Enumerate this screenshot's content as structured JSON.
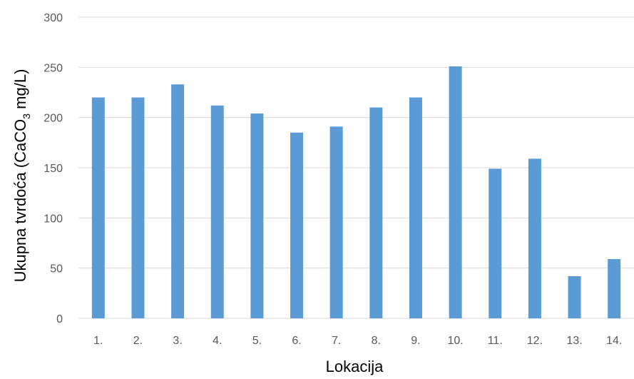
{
  "chart_data": {
    "type": "bar",
    "title": "",
    "xlabel": "Lokacija",
    "ylabel": {
      "before": "Ukupna tvrdoća (CaCO",
      "subscript": "3",
      "after": " mg/L)"
    },
    "categories": [
      "1.",
      "2.",
      "3.",
      "4.",
      "5.",
      "6.",
      "7.",
      "8.",
      "9.",
      "10.",
      "11.",
      "12.",
      "13.",
      "14."
    ],
    "values": [
      220,
      220,
      233,
      212,
      204,
      185,
      191,
      210,
      220,
      251,
      149,
      159,
      42,
      59
    ],
    "ylim": [
      0,
      300
    ],
    "yticks": [
      0,
      50,
      100,
      150,
      200,
      250,
      300
    ],
    "grid": true,
    "legend": "none",
    "colors": {
      "bar": "#5B9BD5",
      "grid": "#D9D9D9",
      "tick_text": "#595959"
    }
  }
}
